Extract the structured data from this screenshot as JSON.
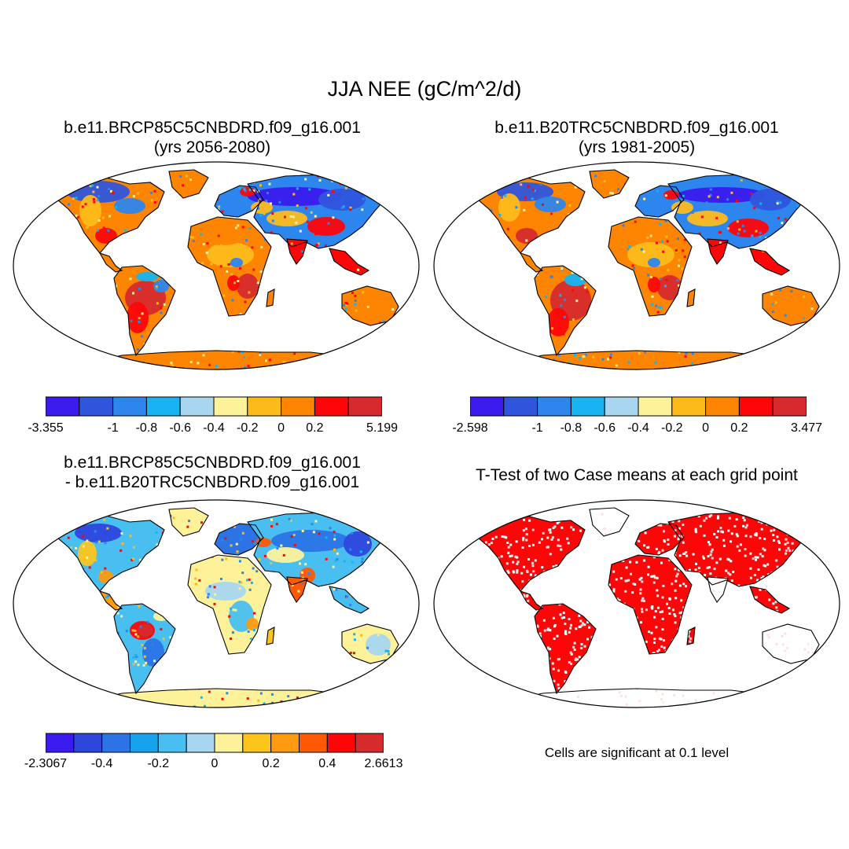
{
  "figure": {
    "title": "JJA NEE (gC/m^2/d)"
  },
  "panels": [
    {
      "id": "future",
      "title_line1": "b.e11.BRCP85C5CNBDRD.f09_g16.001",
      "title_line2": "(yrs 2056-2080)",
      "colorbar": {
        "colors": [
          "#3b1aee",
          "#2f55dd",
          "#2c86ee",
          "#17b4f1",
          "#a8d6f0",
          "#fdf29a",
          "#fdbb1b",
          "#fd8502",
          "#fe0508",
          "#d72a2c"
        ],
        "labels": [
          "-3.355",
          "-1",
          "-0.8",
          "-0.6",
          "-0.4",
          "-0.2",
          "0",
          "0.2",
          "5.199"
        ]
      }
    },
    {
      "id": "historical",
      "title_line1": "b.e11.B20TRC5CNBDRD.f09_g16.001",
      "title_line2": "(yrs 1981-2005)",
      "colorbar": {
        "colors": [
          "#3b1aee",
          "#2f55dd",
          "#2c86ee",
          "#17b4f1",
          "#a8d6f0",
          "#fdf29a",
          "#fdbb1b",
          "#fd8502",
          "#fe0508",
          "#d72a2c"
        ],
        "labels": [
          "-2.598",
          "-1",
          "-0.8",
          "-0.6",
          "-0.4",
          "-0.2",
          "0",
          "0.2",
          "3.477"
        ]
      }
    },
    {
      "id": "difference",
      "title_line1": "b.e11.BRCP85C5CNBDRD.f09_g16.001",
      "title_line2": "- b.e11.B20TRC5CNBDRD.f09_g16.001",
      "colorbar": {
        "colors": [
          "#3b1aee",
          "#2f46dc",
          "#2c74e6",
          "#17a2ee",
          "#49bef0",
          "#a8d6f0",
          "#fdf29a",
          "#fdc51c",
          "#fd9a10",
          "#fe5a06",
          "#fe0508",
          "#d72a2c"
        ],
        "labels": [
          "-2.3067",
          "-0.4",
          "-0.2",
          "0",
          "0.2",
          "0.4",
          "2.6613"
        ]
      }
    },
    {
      "id": "ttest",
      "title_line1": "T-Test of two Case means at each grid point",
      "note": "Cells are significant at 0.1 level"
    }
  ]
}
